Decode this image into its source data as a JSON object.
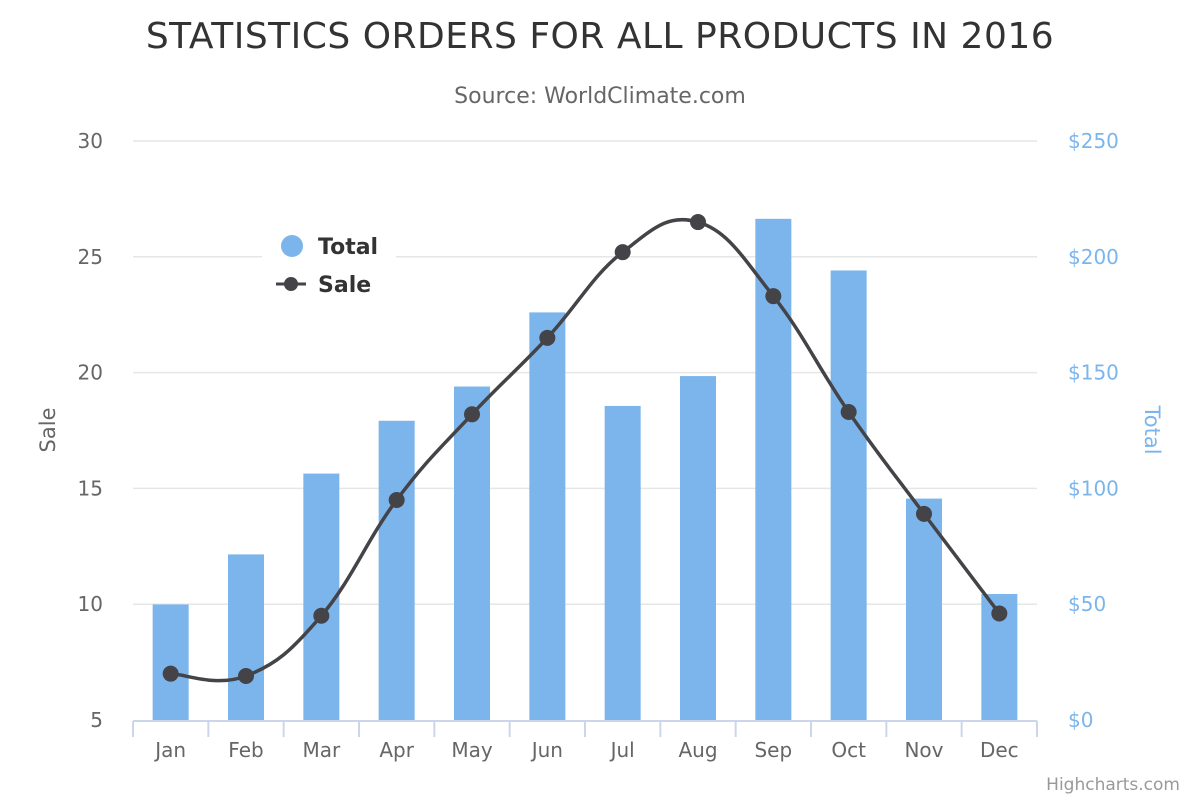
{
  "chart_data": {
    "type": "bar",
    "title": "STATISTICS ORDERS FOR ALL PRODUCTS IN 2016",
    "subtitle": "Source: WorldClimate.com",
    "categories": [
      "Jan",
      "Feb",
      "Mar",
      "Apr",
      "May",
      "Jun",
      "Jul",
      "Aug",
      "Sep",
      "Oct",
      "Nov",
      "Dec"
    ],
    "series": [
      {
        "name": "Total",
        "type": "column",
        "axis": "right",
        "color": "#7cb5ec",
        "values": [
          49.9,
          71.5,
          106.4,
          129.2,
          144.0,
          176.0,
          135.6,
          148.5,
          216.4,
          194.1,
          95.6,
          54.4
        ]
      },
      {
        "name": "Sale",
        "type": "spline",
        "axis": "left",
        "color": "#434348",
        "values": [
          7.0,
          6.9,
          9.5,
          14.5,
          18.2,
          21.5,
          25.2,
          26.5,
          23.3,
          18.3,
          13.9,
          9.6
        ]
      }
    ],
    "y_left": {
      "title": "Sale",
      "ylim": [
        5,
        30
      ],
      "ticks": [
        "5",
        "10",
        "15",
        "20",
        "25",
        "30"
      ],
      "tick_values": [
        5,
        10,
        15,
        20,
        25,
        30
      ]
    },
    "y_right": {
      "title": "Total",
      "ylim": [
        0,
        250
      ],
      "ticks": [
        "$0",
        "$50",
        "$100",
        "$150",
        "$200",
        "$250"
      ],
      "tick_values": [
        0,
        50,
        100,
        150,
        200,
        250
      ]
    },
    "grid": true,
    "legend_position": "top-left, floating inside plot"
  },
  "credits": "Highcharts.com"
}
